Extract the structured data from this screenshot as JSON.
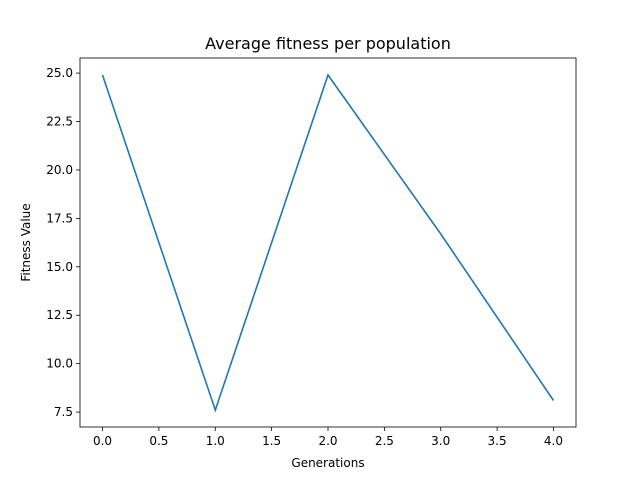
{
  "chart_data": {
    "type": "line",
    "title": "Average fitness per population",
    "xlabel": "Generations",
    "ylabel": "Fitness Value",
    "xlim": [
      -0.2,
      4.2
    ],
    "ylim": [
      6.73,
      25.78
    ],
    "xticks": [
      "0.0",
      "0.5",
      "1.0",
      "1.5",
      "2.0",
      "2.5",
      "3.0",
      "3.5",
      "4.0"
    ],
    "yticks": [
      "7.5",
      "10.0",
      "12.5",
      "15.0",
      "17.5",
      "20.0",
      "22.5",
      "25.0"
    ],
    "grid": false,
    "series": [
      {
        "color": "#1f77b4",
        "x": [
          0,
          1,
          2,
          3,
          4
        ],
        "y": [
          24.9,
          7.6,
          24.9,
          16.7,
          8.1
        ]
      }
    ]
  }
}
